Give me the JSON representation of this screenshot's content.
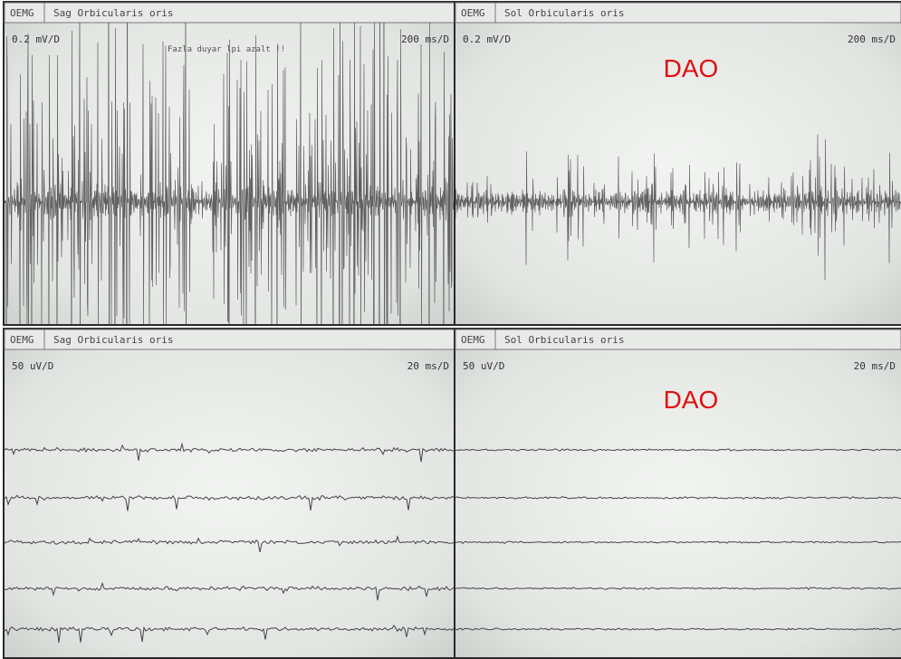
{
  "panels": [
    {
      "mode": "OEMG",
      "muscle": "Sag Orbicularis oris",
      "gain": "0.2 mV/D",
      "sweep": "200 ms/D",
      "note": "Fazla duyar lpi azalt !!"
    },
    {
      "mode": "OEMG",
      "muscle": "Sol Orbicularis oris",
      "gain": "0.2 mV/D",
      "sweep": "200 ms/D",
      "label": "DAO"
    },
    {
      "mode": "OEMG",
      "muscle": "Sag Orbicularis oris",
      "gain": "50 uV/D",
      "sweep": "20 ms/D"
    },
    {
      "mode": "OEMG",
      "muscle": "Sol Orbicularis oris",
      "gain": "50 uV/D",
      "sweep": "20 ms/D",
      "label": "DAO"
    }
  ]
}
